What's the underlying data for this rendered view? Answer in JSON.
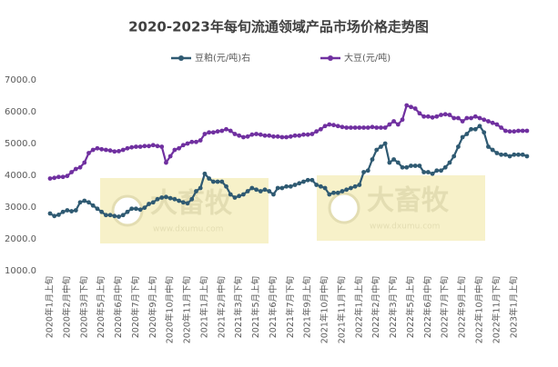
{
  "chart_data": {
    "type": "line",
    "title": "2020-2023年每旬流通领域产品市场价格走势图",
    "watermark": "大畜牧",
    "watermark_url": "www.dxumu.com",
    "categories": [
      "2020年1月上旬",
      null,
      null,
      null,
      "2020年2月中旬",
      null,
      null,
      null,
      "2020年3月下旬",
      null,
      null,
      null,
      "2020年5月上旬",
      null,
      null,
      null,
      "2020年6月中旬",
      null,
      null,
      null,
      "2020年7月下旬",
      null,
      null,
      null,
      "2020年9月上旬",
      null,
      null,
      null,
      "2020年10月中旬",
      null,
      null,
      null,
      "2020年11月下旬",
      null,
      null,
      null,
      "2021年1月上旬",
      null,
      null,
      null,
      "2021年2月中旬",
      null,
      null,
      null,
      "2021年3月下旬",
      null,
      null,
      null,
      "2021年5月上旬",
      null,
      null,
      null,
      "2021年6月中旬",
      null,
      null,
      null,
      "2021年7月下旬",
      null,
      null,
      null,
      "2021年9月上旬",
      null,
      null,
      null,
      "2021年10月中旬",
      null,
      null,
      null,
      "2021年11月下旬",
      null,
      null,
      null,
      "2022年1月上旬",
      null,
      null,
      null,
      "2022年2月中旬",
      null,
      null,
      null,
      "2022年3月下旬",
      null,
      null,
      null,
      "2022年5月上旬",
      null,
      null,
      null,
      "2022年6月中旬",
      null,
      null,
      null,
      "2022年7月下旬",
      null,
      null,
      null,
      "2022年9月上旬",
      null,
      null,
      null,
      "2022年10月中旬",
      null,
      null,
      null,
      "2022年11月下旬",
      null,
      null,
      null,
      "2023年1月上旬",
      null,
      null,
      null
    ],
    "series": [
      {
        "name": "豆粕(元/吨)右",
        "color": "#2f5a72",
        "values": [
          2800,
          2720,
          2760,
          2850,
          2900,
          2870,
          2900,
          3150,
          3200,
          3150,
          3050,
          2950,
          2850,
          2750,
          2750,
          2720,
          2700,
          2750,
          2850,
          2950,
          2950,
          2920,
          2980,
          3100,
          3150,
          3250,
          3300,
          3320,
          3280,
          3250,
          3200,
          3150,
          3120,
          3250,
          3500,
          3600,
          4050,
          3900,
          3800,
          3800,
          3800,
          3650,
          3400,
          3300,
          3350,
          3400,
          3500,
          3600,
          3550,
          3500,
          3550,
          3500,
          3400,
          3600,
          3600,
          3650,
          3650,
          3700,
          3750,
          3800,
          3850,
          3850,
          3700,
          3650,
          3600,
          3400,
          3450,
          3450,
          3500,
          3550,
          3600,
          3650,
          3700,
          4100,
          4150,
          4500,
          4800,
          4900,
          5000,
          4400,
          4500,
          4400,
          4250,
          4250,
          4300,
          4300,
          4300,
          4100,
          4100,
          4050,
          4150,
          4150,
          4250,
          4400,
          4600,
          4900,
          5200,
          5300,
          5450,
          5450,
          5550,
          5350,
          4900,
          4800,
          4700,
          4650,
          4650,
          4600,
          4650,
          4650,
          4650,
          4600
        ]
      },
      {
        "name": "大豆(元/吨)",
        "color": "#7030a0",
        "values": [
          3900,
          3920,
          3950,
          3950,
          3980,
          4100,
          4200,
          4250,
          4400,
          4700,
          4800,
          4850,
          4820,
          4800,
          4780,
          4750,
          4760,
          4800,
          4850,
          4880,
          4900,
          4900,
          4920,
          4920,
          4950,
          4920,
          4900,
          4400,
          4600,
          4800,
          4850,
          4950,
          5000,
          5050,
          5050,
          5100,
          5300,
          5350,
          5350,
          5380,
          5400,
          5450,
          5400,
          5300,
          5250,
          5200,
          5220,
          5280,
          5300,
          5280,
          5250,
          5250,
          5220,
          5220,
          5200,
          5200,
          5220,
          5250,
          5250,
          5280,
          5280,
          5300,
          5380,
          5450,
          5550,
          5600,
          5580,
          5550,
          5520,
          5500,
          5500,
          5500,
          5500,
          5500,
          5500,
          5520,
          5500,
          5500,
          5500,
          5600,
          5700,
          5600,
          5750,
          6200,
          6150,
          6100,
          5950,
          5850,
          5850,
          5820,
          5850,
          5900,
          5920,
          5900,
          5800,
          5800,
          5700,
          5800,
          5800,
          5850,
          5800,
          5750,
          5700,
          5650,
          5600,
          5500,
          5400,
          5380,
          5380,
          5400,
          5400,
          5400
        ]
      }
    ],
    "ylim": [
      1000,
      7000
    ],
    "yticks": [
      {
        "value": 1000,
        "label": "1000.0"
      },
      {
        "value": 2000,
        "label": "2000.0"
      },
      {
        "value": 3000,
        "label": "3000.0"
      },
      {
        "value": 4000,
        "label": "4000.0"
      },
      {
        "value": 5000,
        "label": "5000.0"
      },
      {
        "value": 6000,
        "label": "6000.0"
      },
      {
        "value": 7000,
        "label": "7000.0"
      }
    ],
    "grid": false,
    "legend": "top"
  }
}
